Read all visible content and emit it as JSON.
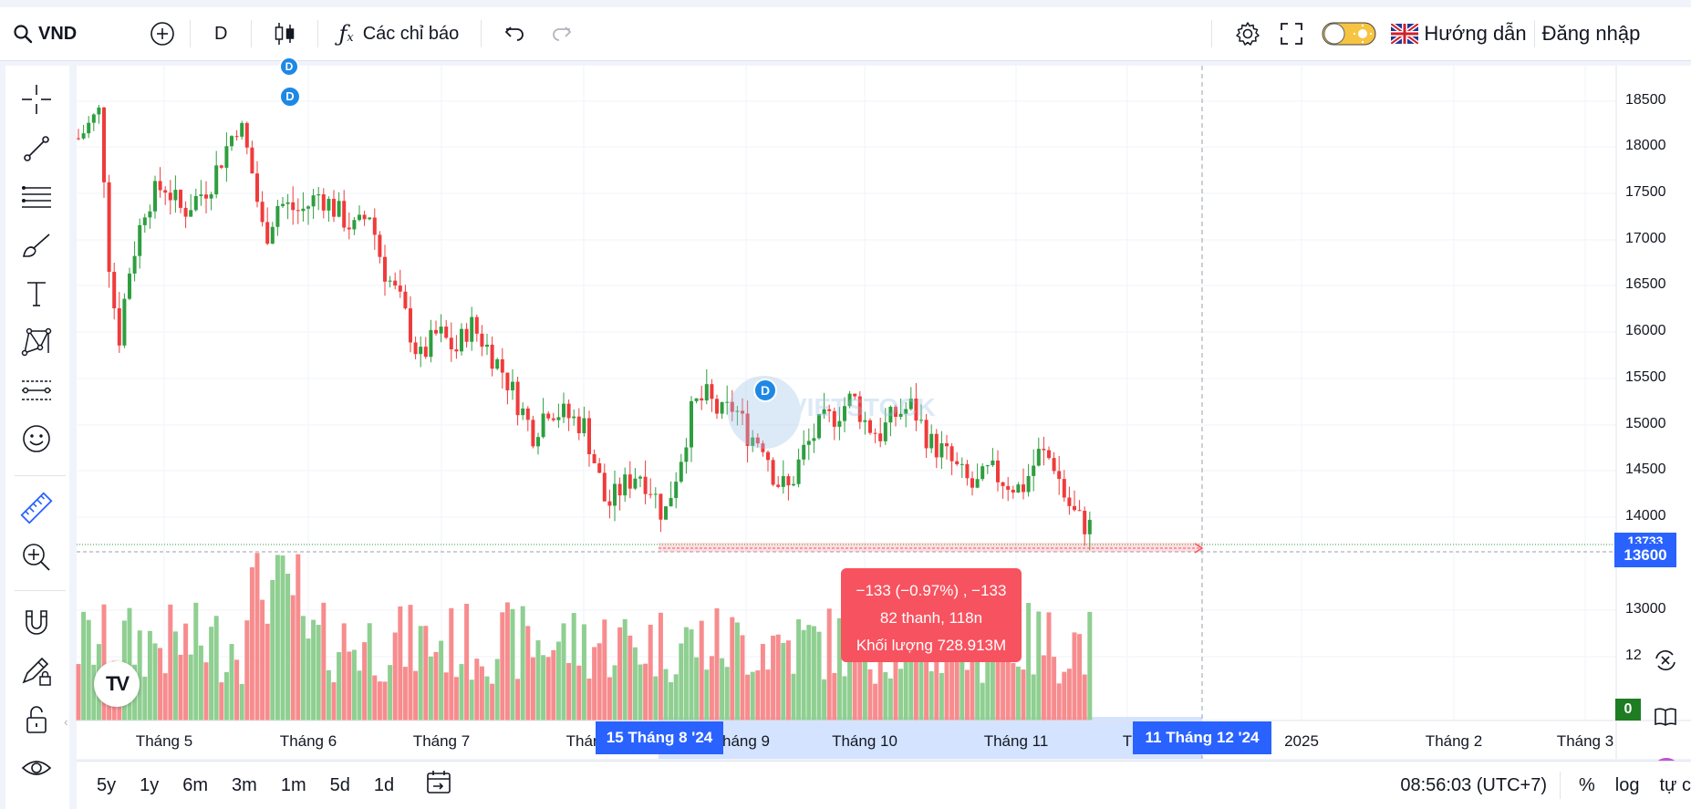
{
  "symbol": {
    "ticker": "VND"
  },
  "toolbar": {
    "interval": "D",
    "indicators_label": "Các chỉ báo",
    "guide_label": "Hướng dẫn",
    "login_label": "Đăng nhập"
  },
  "left_tools": [
    "crosshair-icon",
    "trend-line-icon",
    "fib-lines-icon",
    "brush-icon",
    "text-icon",
    "pattern-icon",
    "forecast-icon",
    "emoji-icon",
    "ruler-icon",
    "zoom-in-icon",
    "magnet-icon",
    "lock-drawing-icon",
    "unlock-icon",
    "eye-icon"
  ],
  "price_axis": {
    "labels": [
      "18500",
      "18000",
      "17500",
      "17000",
      "16500",
      "16000",
      "15500",
      "15000",
      "14500",
      "14000",
      "13000",
      "12",
      "0"
    ],
    "current_price": "13600",
    "hidden_price": "13733"
  },
  "time_axis": {
    "labels": [
      "Tháng 5",
      "Tháng 6",
      "Tháng 7",
      "Thán",
      "háng 9",
      "Tháng 10",
      "Tháng 11",
      "T",
      "2025",
      "Tháng 2",
      "Tháng 3"
    ],
    "start_badge": "15 Tháng 8 '24",
    "end_badge": "11 Tháng 12 '24"
  },
  "measure_tooltip": {
    "line1": "−133 (−0.97%) , −133",
    "line2": "82 thanh, 118n",
    "line3": "Khối lượng 728.913M"
  },
  "events": {
    "dividend_marker": "D"
  },
  "bottom": {
    "ranges": [
      "5y",
      "1y",
      "6m",
      "3m",
      "1m",
      "5d",
      "1d"
    ],
    "clock": "08:56:03 (UTC+7)",
    "percent_label": "%",
    "log_label": "log",
    "auto_label": "tự c"
  },
  "colors": {
    "up": "#26a69a",
    "up_candle": "#2e9e3f",
    "down": "#ef3b3b",
    "vol_up": "#8fcf91",
    "vol_down": "#f78c8e",
    "accent": "#2962ff",
    "tooltip_bg": "#f7525f"
  },
  "logo": {
    "tv_glyph": "TV"
  }
}
